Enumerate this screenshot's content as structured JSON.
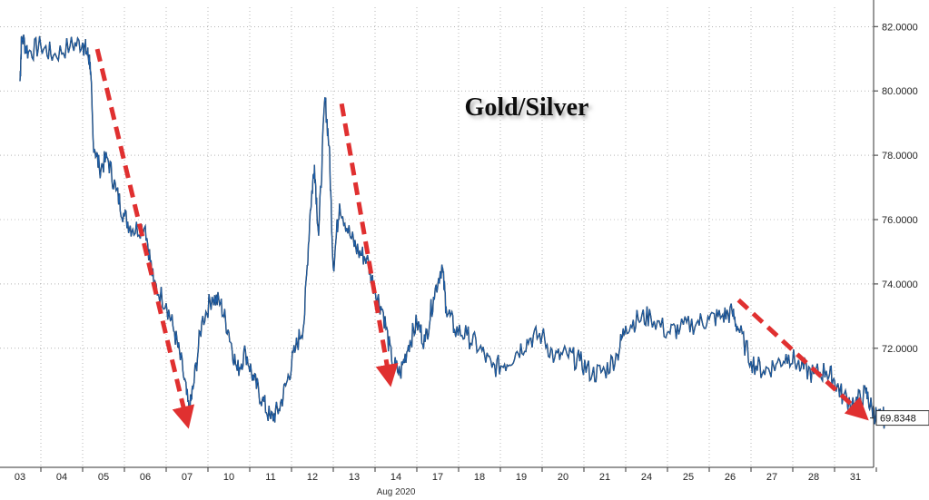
{
  "chart_data": {
    "type": "line",
    "title": "Gold/Silver",
    "xlabel": "Aug 2020",
    "ylabel": "",
    "ylim": [
      68.3,
      82.6
    ],
    "y_ticks": [
      72,
      74,
      76,
      78,
      80,
      82
    ],
    "y_tick_labels": [
      "72.0000",
      "74.0000",
      "76.0000",
      "78.0000",
      "80.0000",
      "82.0000"
    ],
    "grid": true,
    "last_value": 69.8348,
    "last_value_label": "69.8348",
    "colors": {
      "line": "#1f5fa8",
      "arrows": "#e03030",
      "grid": "#888888"
    },
    "x_tick_labels": [
      "03",
      "04",
      "05",
      "06",
      "07",
      "10",
      "11",
      "12",
      "13",
      "14",
      "17",
      "18",
      "19",
      "20",
      "21",
      "24",
      "25",
      "26",
      "27",
      "28",
      "31"
    ],
    "series": [
      {
        "values": [
          [
            0.0,
            80.3
          ],
          [
            0.04,
            81.7
          ],
          [
            0.2,
            81.2
          ],
          [
            0.5,
            81.4
          ],
          [
            0.8,
            81.1
          ],
          [
            1.2,
            81.4
          ],
          [
            1.5,
            81.5
          ],
          [
            1.6,
            81.2
          ],
          [
            1.68,
            80.9
          ],
          [
            1.75,
            78.5
          ],
          [
            1.9,
            77.6
          ],
          [
            2.1,
            77.9
          ],
          [
            2.3,
            76.9
          ],
          [
            2.5,
            76.1
          ],
          [
            2.7,
            75.7
          ],
          [
            3.0,
            75.8
          ],
          [
            3.2,
            74.0
          ],
          [
            3.5,
            73.4
          ],
          [
            3.7,
            72.5
          ],
          [
            3.9,
            71.3
          ],
          [
            4.05,
            70.0
          ],
          [
            4.15,
            70.8
          ],
          [
            4.35,
            72.8
          ],
          [
            4.6,
            73.6
          ],
          [
            4.8,
            73.4
          ],
          [
            5.0,
            72.5
          ],
          [
            5.2,
            71.3
          ],
          [
            5.4,
            71.9
          ],
          [
            5.6,
            71.0
          ],
          [
            5.8,
            70.4
          ],
          [
            6.0,
            69.8
          ],
          [
            6.2,
            70.1
          ],
          [
            6.4,
            71.0
          ],
          [
            6.6,
            72.0
          ],
          [
            6.8,
            72.8
          ],
          [
            6.95,
            76.3
          ],
          [
            7.05,
            77.7
          ],
          [
            7.15,
            75.5
          ],
          [
            7.3,
            79.8
          ],
          [
            7.4,
            78.3
          ],
          [
            7.5,
            74.5
          ],
          [
            7.65,
            76.5
          ],
          [
            7.9,
            75.5
          ],
          [
            8.1,
            75.0
          ],
          [
            8.3,
            74.8
          ],
          [
            8.5,
            73.8
          ],
          [
            8.7,
            73.1
          ],
          [
            8.9,
            71.6
          ],
          [
            9.1,
            71.2
          ],
          [
            9.3,
            72.1
          ],
          [
            9.5,
            72.8
          ],
          [
            9.7,
            72.2
          ],
          [
            9.9,
            73.6
          ],
          [
            10.1,
            74.6
          ],
          [
            10.2,
            73.3
          ],
          [
            10.4,
            72.6
          ],
          [
            10.7,
            72.4
          ],
          [
            11.0,
            72.0
          ],
          [
            11.3,
            71.4
          ],
          [
            11.6,
            71.5
          ],
          [
            11.9,
            71.9
          ],
          [
            12.2,
            72.3
          ],
          [
            12.5,
            72.4
          ],
          [
            12.8,
            71.7
          ],
          [
            13.1,
            71.8
          ],
          [
            13.4,
            71.6
          ],
          [
            13.7,
            71.2
          ],
          [
            14.0,
            71.3
          ],
          [
            14.3,
            71.8
          ],
          [
            14.5,
            72.7
          ],
          [
            14.8,
            72.9
          ],
          [
            15.1,
            73.0
          ],
          [
            15.5,
            72.5
          ],
          [
            15.8,
            72.6
          ],
          [
            16.2,
            72.8
          ],
          [
            16.5,
            72.9
          ],
          [
            16.8,
            73.0
          ],
          [
            17.05,
            73.1
          ],
          [
            17.2,
            72.6
          ],
          [
            17.5,
            71.6
          ],
          [
            17.8,
            71.3
          ],
          [
            18.1,
            71.5
          ],
          [
            18.4,
            71.8
          ],
          [
            18.7,
            71.4
          ],
          [
            19.0,
            71.2
          ],
          [
            19.3,
            71.3
          ],
          [
            19.5,
            71.0
          ],
          [
            19.7,
            70.5
          ],
          [
            20.0,
            70.3
          ],
          [
            20.25,
            70.6
          ],
          [
            20.4,
            70.1
          ],
          [
            20.55,
            69.8
          ],
          [
            20.7,
            69.85
          ]
        ]
      }
    ],
    "annotations": [
      {
        "type": "dashed-arrow",
        "from": [
          1.85,
          81.3
        ],
        "to": [
          4.0,
          69.7
        ]
      },
      {
        "type": "dashed-arrow",
        "from": [
          7.7,
          79.6
        ],
        "to": [
          8.85,
          71.0
        ]
      },
      {
        "type": "dashed-arrow",
        "from": [
          17.2,
          73.5
        ],
        "to": [
          20.2,
          69.9
        ]
      }
    ]
  }
}
